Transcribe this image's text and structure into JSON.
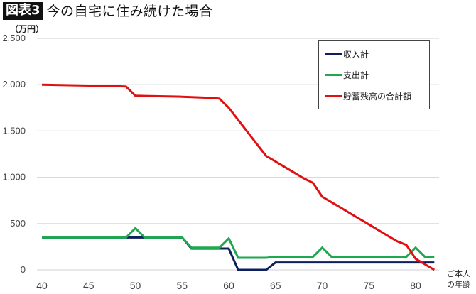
{
  "header": {
    "badge": "図表3",
    "title": "今の自宅に住み続けた場合"
  },
  "axis": {
    "unit": "（万円）",
    "xlabel_line1": "ご本人",
    "xlabel_line2": "の年齢"
  },
  "legend": {
    "items": [
      {
        "label": "収入計",
        "color": "#0d1f5c"
      },
      {
        "label": "支出計",
        "color": "#1fa84f"
      },
      {
        "label": "貯蓄残高の合計額",
        "color": "#e01010"
      }
    ]
  },
  "chart_data": {
    "type": "line",
    "title": "図表3 今の自宅に住み続けた場合",
    "xlabel": "ご本人の年齢",
    "ylabel": "（万円）",
    "ylim": [
      0,
      2500
    ],
    "xlim": [
      40,
      82
    ],
    "yticks": [
      0,
      500,
      1000,
      1500,
      2000,
      2500
    ],
    "ytick_labels": [
      "0",
      "500",
      "1,000",
      "1,500",
      "2,000",
      "2,500"
    ],
    "xticks": [
      40,
      45,
      50,
      55,
      60,
      65,
      70,
      75,
      80
    ],
    "grid": true,
    "legend_position": "top-right",
    "x": [
      40,
      41,
      42,
      43,
      44,
      45,
      46,
      47,
      48,
      49,
      50,
      51,
      52,
      53,
      54,
      55,
      56,
      57,
      58,
      59,
      60,
      61,
      62,
      63,
      64,
      65,
      66,
      67,
      68,
      69,
      70,
      71,
      72,
      73,
      74,
      75,
      76,
      77,
      78,
      79,
      80,
      81,
      82
    ],
    "series": [
      {
        "name": "収入計",
        "color": "#0d1f5c",
        "values": [
          350,
          350,
          350,
          350,
          350,
          350,
          350,
          350,
          350,
          350,
          350,
          350,
          350,
          350,
          350,
          350,
          230,
          230,
          230,
          230,
          230,
          0,
          0,
          0,
          0,
          80,
          80,
          80,
          80,
          80,
          80,
          80,
          80,
          80,
          80,
          80,
          80,
          80,
          80,
          80,
          80,
          80,
          80
        ]
      },
      {
        "name": "支出計",
        "color": "#1fa84f",
        "values": [
          350,
          350,
          350,
          350,
          350,
          350,
          350,
          350,
          350,
          350,
          450,
          350,
          350,
          350,
          350,
          350,
          240,
          240,
          240,
          240,
          340,
          130,
          130,
          130,
          130,
          140,
          140,
          140,
          140,
          140,
          240,
          140,
          140,
          140,
          140,
          140,
          140,
          140,
          140,
          140,
          240,
          140,
          140
        ]
      },
      {
        "name": "貯蓄残高の合計額",
        "color": "#e01010",
        "values": [
          2000,
          1998,
          1996,
          1994,
          1992,
          1990,
          1988,
          1986,
          1984,
          1980,
          1880,
          1878,
          1876,
          1874,
          1872,
          1870,
          1866,
          1862,
          1858,
          1850,
          1750,
          1620,
          1490,
          1360,
          1230,
          1170,
          1110,
          1050,
          990,
          940,
          790,
          730,
          670,
          610,
          550,
          490,
          430,
          370,
          310,
          270,
          120,
          60,
          0
        ]
      }
    ]
  }
}
